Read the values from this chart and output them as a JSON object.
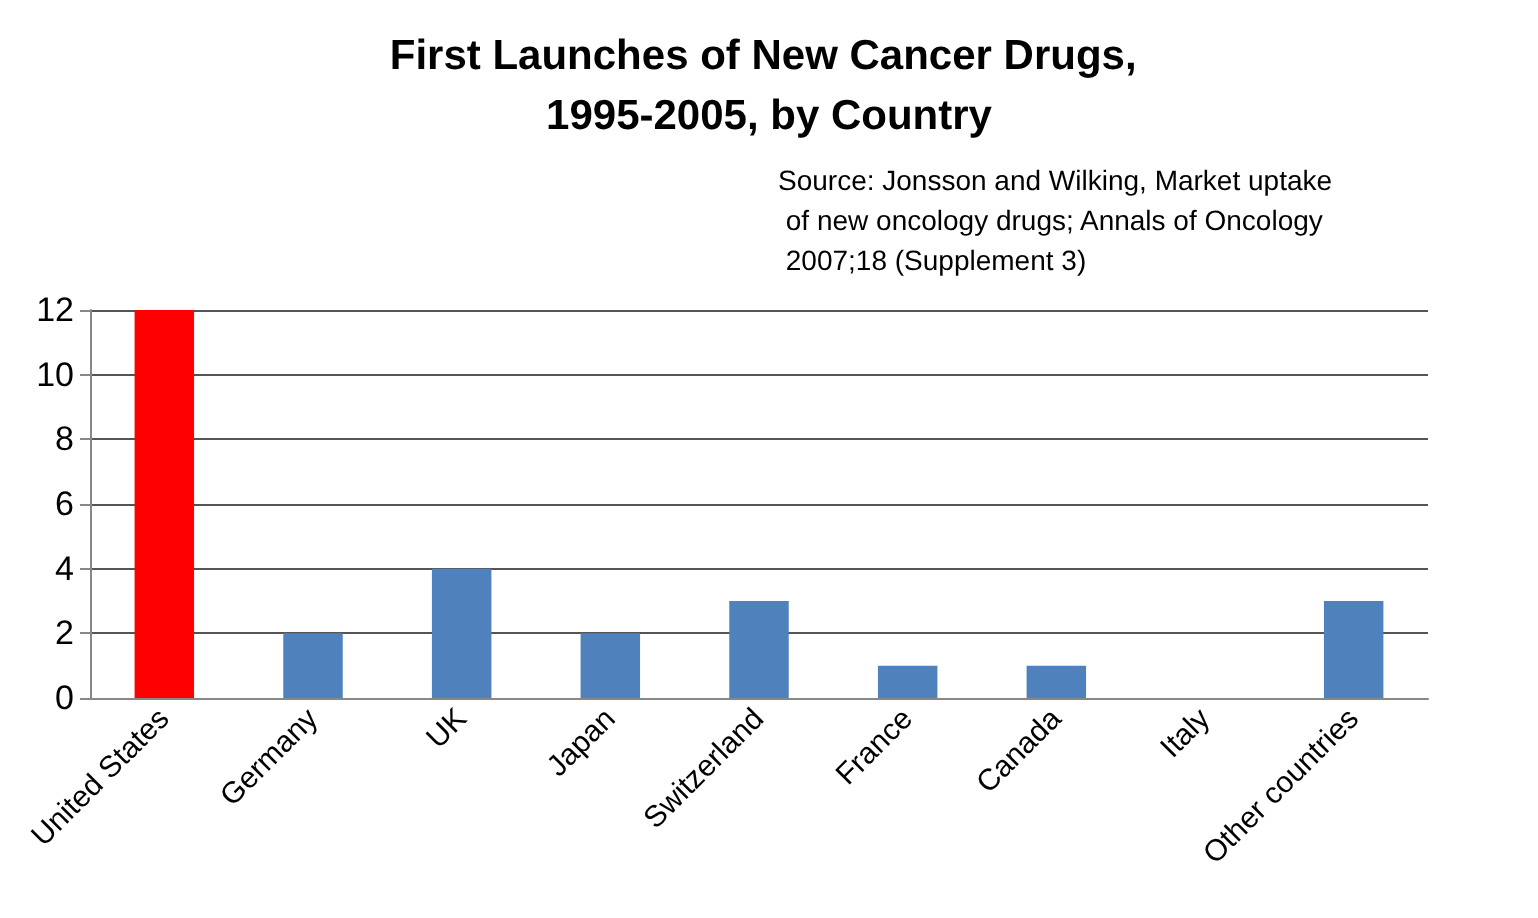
{
  "chart_data": {
    "type": "bar",
    "title": "First Launches of New Cancer Drugs, 1995-2005, by Country",
    "categories": [
      "United States",
      "Germany",
      "UK",
      "Japan",
      "Switzerland",
      "France",
      "Canada",
      "Italy",
      "Other countries"
    ],
    "values": [
      12,
      2,
      4,
      2,
      3,
      1,
      1,
      0,
      3
    ],
    "colors": [
      "#ff0000",
      "#4f81bd",
      "#4f81bd",
      "#4f81bd",
      "#4f81bd",
      "#4f81bd",
      "#4f81bd",
      "#4f81bd",
      "#4f81bd"
    ],
    "ylim": [
      0,
      12
    ],
    "yticks": [
      0,
      2,
      4,
      6,
      8,
      10,
      12
    ],
    "grid": true,
    "annotations": [
      "Source: Jonsson and Wilking, Market uptake of new oncology drugs; Annals of Oncology 2007;18 (Supplement 3)"
    ]
  }
}
